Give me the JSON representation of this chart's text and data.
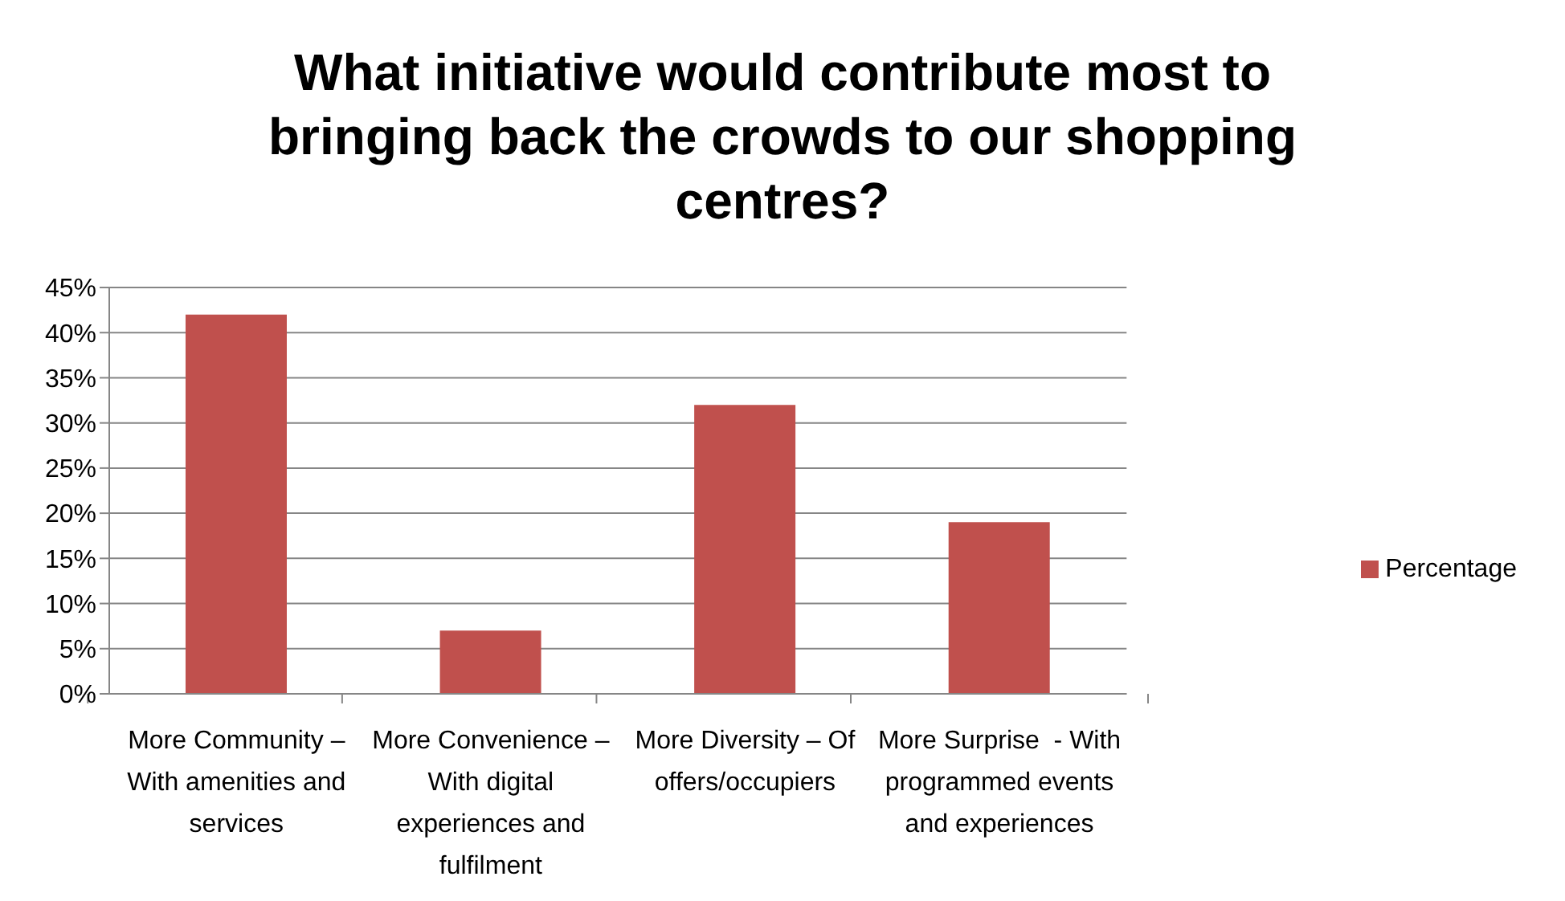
{
  "chart_data": {
    "type": "bar",
    "title": "What initiative would contribute most to bringing back the crowds to our shopping centres?",
    "categories": [
      "More Community – With amenities and services",
      "More Convenience – With digital experiences and fulfilment",
      "More Diversity – Of offers/occupiers",
      "More Surprise  - With programmed events and experiences"
    ],
    "series": [
      {
        "name": "Percentage",
        "color": "#c0504d",
        "values": [
          42,
          7,
          32,
          19
        ]
      }
    ],
    "ylim": [
      0,
      45
    ],
    "yticks": [
      {
        "value": 0,
        "label": "0%"
      },
      {
        "value": 5,
        "label": "5%"
      },
      {
        "value": 10,
        "label": "10%"
      },
      {
        "value": 15,
        "label": "15%"
      },
      {
        "value": 20,
        "label": "20%"
      },
      {
        "value": 25,
        "label": "25%"
      },
      {
        "value": 30,
        "label": "30%"
      },
      {
        "value": 35,
        "label": "35%"
      },
      {
        "value": 40,
        "label": "40%"
      },
      {
        "value": 45,
        "label": "45%"
      }
    ],
    "grid": "y",
    "legend": "right"
  }
}
